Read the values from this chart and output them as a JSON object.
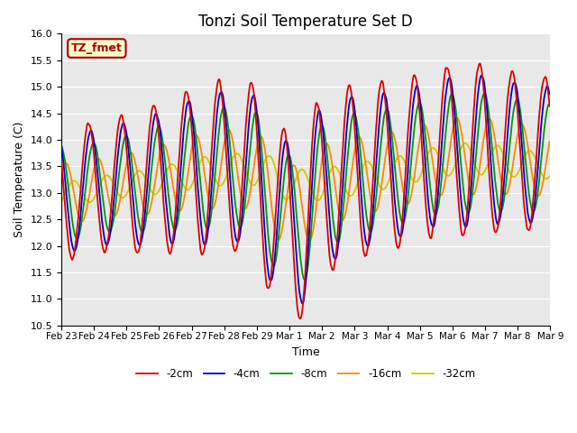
{
  "title": "Tonzi Soil Temperature Set D",
  "xlabel": "Time",
  "ylabel": "Soil Temperature (C)",
  "ylim": [
    10.5,
    16.0
  ],
  "yticks": [
    10.5,
    11.0,
    11.5,
    12.0,
    12.5,
    13.0,
    13.5,
    14.0,
    14.5,
    15.0,
    15.5,
    16.0
  ],
  "label_box_text": "TZ_fmet",
  "label_box_color": "#ffffcc",
  "label_box_edge": "#aa0000",
  "label_box_text_color": "#aa0000",
  "bg_color": "#e8e8e8",
  "fig_bg_color": "#ffffff",
  "grid_color": "#ffffff",
  "line_colors": [
    "#dd0000",
    "#0000cc",
    "#009900",
    "#ff8800",
    "#cccc00"
  ],
  "line_labels": [
    "-2cm",
    "-4cm",
    "-8cm",
    "-16cm",
    "-32cm"
  ],
  "line_width": 1.3,
  "xtick_labels": [
    "Feb 23",
    "Feb 24",
    "Feb 25",
    "Feb 26",
    "Feb 27",
    "Feb 28",
    "Feb 29",
    "Mar 1",
    "Mar 2",
    "Mar 3",
    "Mar 4",
    "Mar 5",
    "Mar 6",
    "Mar 7",
    "Mar 8",
    "Mar 9"
  ],
  "n_points_per_day": 48,
  "n_days": 15
}
